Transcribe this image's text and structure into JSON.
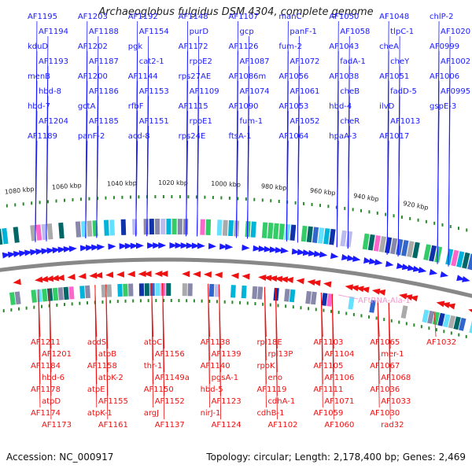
{
  "title": "Archaeoglobus fulgidus DSM 4304, complete genome",
  "footer": {
    "accession": "Accession: NC_000917",
    "stats": "Topology: circular; Length: 2,178,400 bp; Genes: 2,469"
  },
  "colors": {
    "forward": "#1a1aff",
    "reverse": "#ee1111",
    "rna": "#ee99cc",
    "backbone": "#888888",
    "tick_dot": "#2a8a2a",
    "text": "#222222"
  },
  "ticks": [
    "1080 kbp",
    "1060 kbp",
    "1040 kbp",
    "1020 kbp",
    "1000 kbp",
    "980 kbp",
    "960 kbp",
    "940 kbp",
    "920 kbp"
  ],
  "forward_labels": [
    "AF1195",
    "AF1194",
    "kduD",
    "AF1193",
    "menB",
    "hbd-8",
    "hbd-7",
    "AF1204",
    "AF1189",
    "AF1203",
    "AF1188",
    "AF1202",
    "AF1187",
    "AF1200",
    "AF1186",
    "gctA",
    "AF1185",
    "panF-2",
    "AF1192",
    "AF1154",
    "pgk",
    "cat2-1",
    "AF1144",
    "AF1153",
    "rfbF",
    "AF1151",
    "acd-8",
    "AF1148",
    "purD",
    "AF1172",
    "rpoE2",
    "rps27AE",
    "AF1109",
    "AF1115",
    "rpoE1",
    "rps24E",
    "AF1107",
    "gcp",
    "AF1126",
    "AF1087",
    "AF1086m",
    "AF1074",
    "AF1090",
    "fum-1",
    "ftsA-1",
    "manC",
    "panF-1",
    "fum-2",
    "AF1072",
    "AF1056",
    "AF1061",
    "AF1053",
    "AF1052",
    "AF1064",
    "AF1050",
    "AF1058",
    "AF1043",
    "fadA-1",
    "AF1038",
    "cheB",
    "hbd-4",
    "cheR",
    "hpaA-3",
    "AF1048",
    "tlpC-1",
    "cheA",
    "cheY",
    "AF1051",
    "fadD-5",
    "ilvD",
    "AF1013",
    "AF1017",
    "chlP-2",
    "AF1020",
    "AF0999",
    "AF1002",
    "AF1006",
    "AF0995",
    "gspE-3"
  ],
  "reverse_labels": [
    "AF1211",
    "AF1201",
    "AF1184",
    "hbd-6",
    "AF1178",
    "atpD",
    "AF1174",
    "AF1173",
    "acdS",
    "atpB",
    "AF1158",
    "atpK-2",
    "atpE",
    "AF1155",
    "atpK-1",
    "AF1161",
    "atpC",
    "AF1156",
    "thr-1",
    "AF1149a",
    "AF1150",
    "AF1152",
    "argJ",
    "AF1137",
    "AF1138",
    "AF1139",
    "AF1140",
    "pgsA-1",
    "hbd-5",
    "AF1123",
    "nirJ-1",
    "AF1124",
    "rpl18E",
    "rpl13P",
    "rpoK",
    "eno",
    "AF1119",
    "cdhA-1",
    "cdhB-1",
    "AF1102",
    "AF1103",
    "AF1104",
    "AF1105",
    "AF1106",
    "AF1111",
    "AF1071",
    "AF1059",
    "AF1060",
    "AF1065",
    "mer-1",
    "AF1067",
    "AF1068",
    "AF1036",
    "AF1033",
    "AF1030",
    "rad32",
    "AF1032"
  ],
  "rna_labels": [
    "AFtRNA-Ala-1"
  ]
}
